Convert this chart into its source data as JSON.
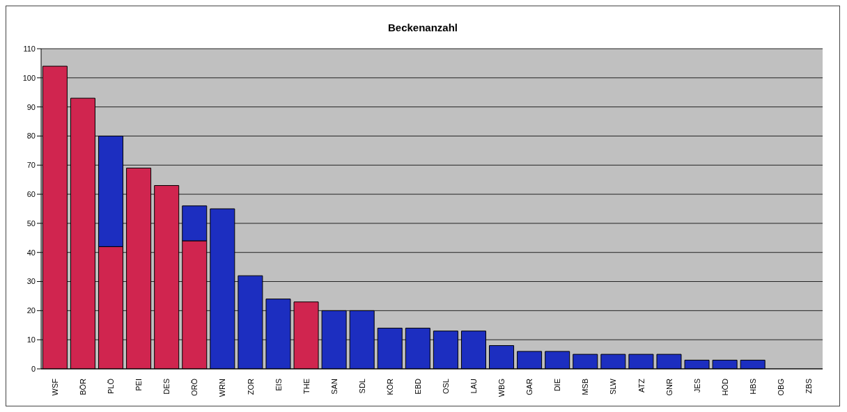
{
  "chart_data": {
    "type": "bar",
    "title": "Beckenanzahl",
    "stacked": true,
    "grid": "y",
    "legend": false,
    "categories": [
      "WSF",
      "BÖR",
      "PLÖ",
      "PEI",
      "DES",
      "ORÖ",
      "WRN",
      "ZOR",
      "EIS",
      "THE",
      "SAN",
      "SDL",
      "KÖR",
      "EBD",
      "OSL",
      "LAU",
      "WBG",
      "GAR",
      "DIE",
      "MSB",
      "SLW",
      "ATZ",
      "GNR",
      "JES",
      "HÖD",
      "HBS",
      "OBG",
      "ZBS"
    ],
    "series": [
      {
        "color": "#d0254f",
        "values": [
          104,
          93,
          42,
          69,
          63,
          44,
          null,
          null,
          null,
          23,
          null,
          null,
          null,
          null,
          null,
          null,
          null,
          null,
          null,
          null,
          null,
          null,
          null,
          null,
          null,
          null,
          null,
          null
        ]
      },
      {
        "color": "#1c2ec0",
        "values": [
          null,
          null,
          38,
          null,
          null,
          12,
          55,
          32,
          24,
          null,
          20,
          20,
          14,
          14,
          13,
          13,
          8,
          6,
          6,
          5,
          5,
          5,
          5,
          3,
          3,
          3,
          0,
          0
        ]
      }
    ],
    "ylim": [
      0,
      110
    ],
    "yticks": [
      0,
      10,
      20,
      30,
      40,
      50,
      60,
      70,
      80,
      90,
      100,
      110
    ]
  }
}
